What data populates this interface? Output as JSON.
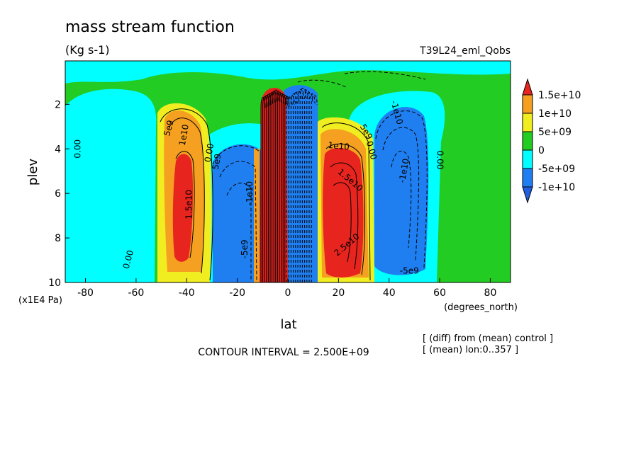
{
  "chart_data": {
    "type": "heatmap",
    "title": "mass stream function",
    "units": "(Kg s-1)",
    "run_label": "T39L24_eml_Qobs",
    "xlabel": "lat",
    "xunits": "(degrees_north)",
    "ylabel": "plev",
    "yunits": "(x1E4 Pa)",
    "x_ticks": [
      "-80",
      "-60",
      "-40",
      "-20",
      "0",
      "20",
      "40",
      "60",
      "80"
    ],
    "y_ticks": [
      "2",
      "4",
      "6",
      "8",
      "10"
    ],
    "xlim": [
      -88,
      88
    ],
    "ylim": [
      10,
      0.05
    ],
    "contour_interval_text": "CONTOUR INTERVAL = 2.500E+09",
    "notes": [
      "[ (diff) from (mean) control ]",
      "[ (mean) lon:0..357 ]"
    ],
    "colorbar": {
      "labels": [
        "1.5e+10",
        "1e+10",
        "5e+09",
        "0",
        "-5e+09",
        "-1e+10"
      ],
      "colors": [
        "#e8241f",
        "#f5a020",
        "#f0ee20",
        "#22cc22",
        "#00ffff",
        "#1f7ff0",
        "#1f5fe0"
      ]
    },
    "cells": [
      {
        "lat": -40,
        "plev": 6.2,
        "value": 16000000000.0
      },
      {
        "lat": -20,
        "plev": 6.5,
        "value": -11000000000.0
      },
      {
        "lat": -5,
        "plev": 5.5,
        "value": 35000000000.0
      },
      {
        "lat": 5,
        "plev": 5.5,
        "value": -35000000000.0
      },
      {
        "lat": 22,
        "plev": 6.5,
        "value": 26000000000.0
      },
      {
        "lat": 43,
        "plev": 6.0,
        "value": -12000000000.0
      }
    ],
    "contour_labels": [
      {
        "text": "0.00",
        "lat": -82,
        "plev": 4.0,
        "angle": -90
      },
      {
        "text": "5e9",
        "lat": -46,
        "plev": 3.1,
        "angle": -75
      },
      {
        "text": "1e10",
        "lat": -40,
        "plev": 3.4,
        "angle": -80
      },
      {
        "text": "1.5e10",
        "lat": -38,
        "plev": 6.5,
        "angle": -90
      },
      {
        "text": "0.00",
        "lat": -30,
        "plev": 4.2,
        "angle": -80
      },
      {
        "text": "5e9",
        "lat": -27,
        "plev": 4.6,
        "angle": -80
      },
      {
        "text": "0.00",
        "lat": -62,
        "plev": 9.0,
        "angle": -75
      },
      {
        "text": "-1e10",
        "lat": -14,
        "plev": 6.0,
        "angle": -90
      },
      {
        "text": "-5e9",
        "lat": -16,
        "plev": 8.5,
        "angle": -90
      },
      {
        "text": "1e10",
        "lat": 20,
        "plev": 4.0,
        "angle": 5
      },
      {
        "text": "1.5e10",
        "lat": 24,
        "plev": 5.5,
        "angle": 40
      },
      {
        "text": "2.5e10",
        "lat": 24,
        "plev": 8.4,
        "angle": -40
      },
      {
        "text": "5e9",
        "lat": 30,
        "plev": 3.3,
        "angle": 60
      },
      {
        "text": "0.00",
        "lat": 32,
        "plev": 4.1,
        "angle": 75
      },
      {
        "text": "-1e10",
        "lat": 42,
        "plev": 2.4,
        "angle": 75
      },
      {
        "text": "-1e10",
        "lat": 47,
        "plev": 5.0,
        "angle": -80
      },
      {
        "text": "0.00",
        "lat": 59,
        "plev": 4.5,
        "angle": 90
      },
      {
        "text": "-5e9",
        "lat": 48,
        "plev": 9.6,
        "angle": 0
      }
    ]
  }
}
